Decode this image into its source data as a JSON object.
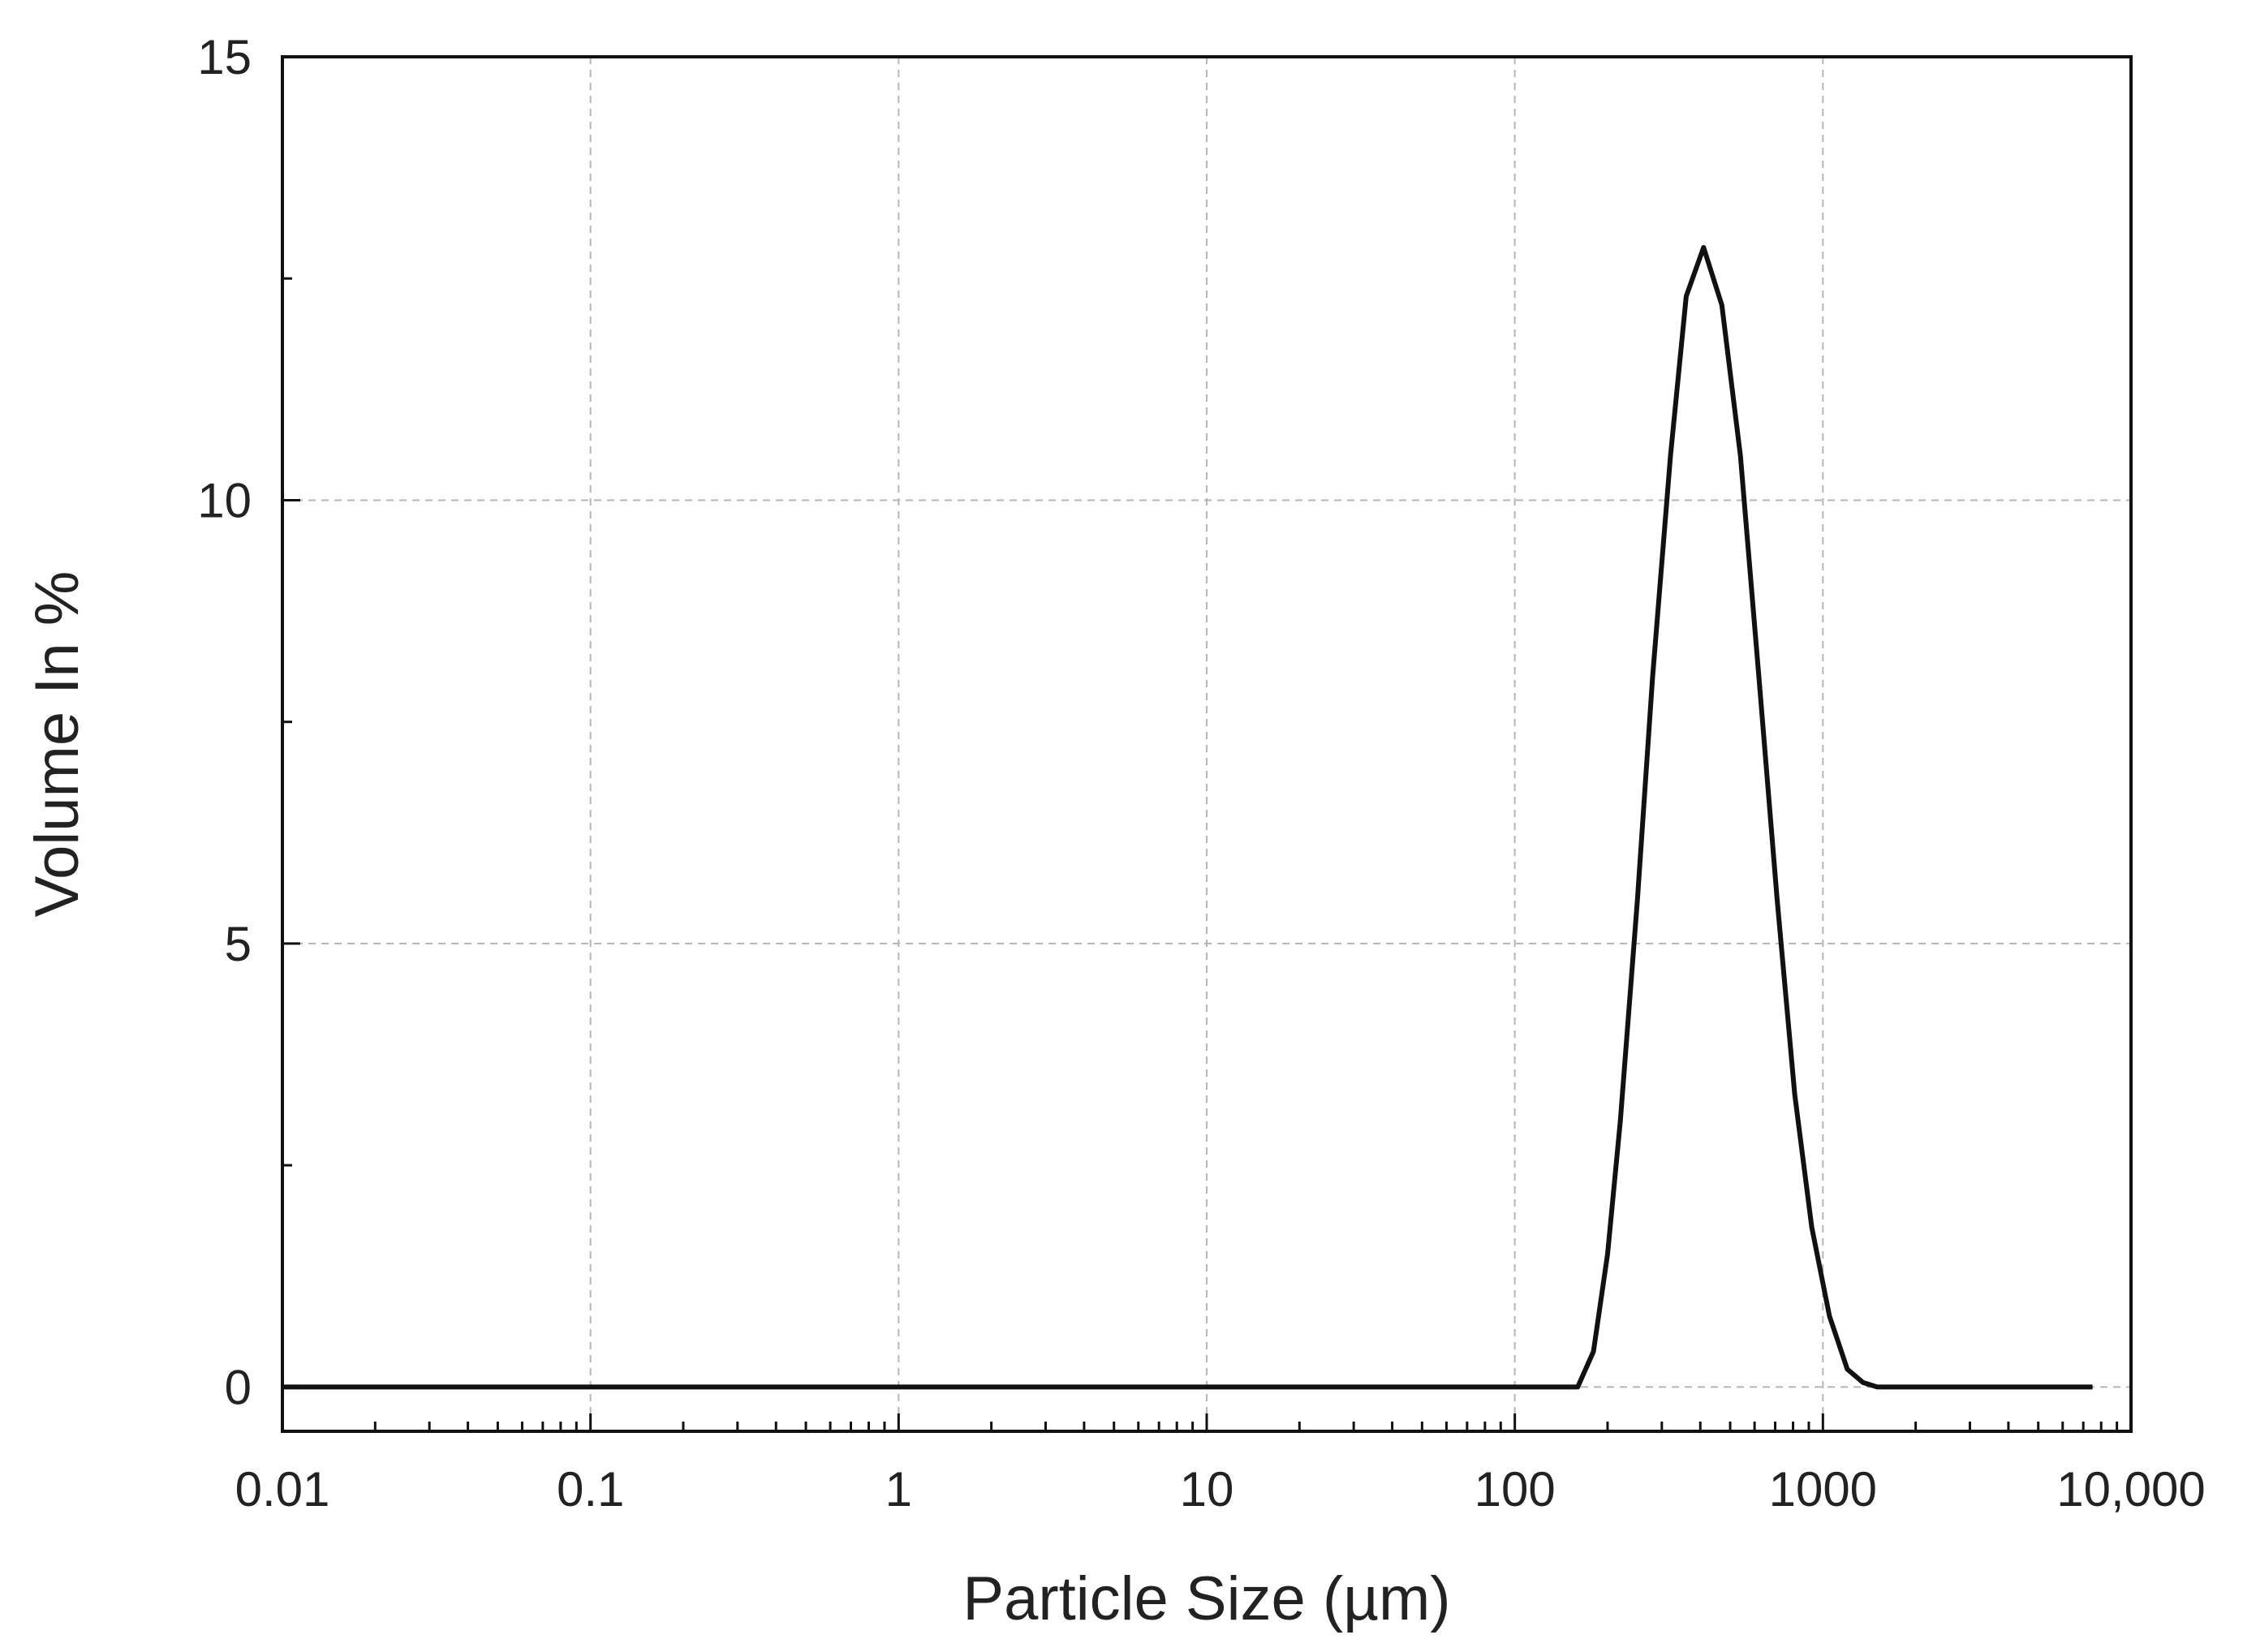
{
  "chart_data": {
    "type": "line",
    "xlabel": "Particle Size (µm)",
    "ylabel": "Volume In %",
    "x_scale": "log",
    "xlim": [
      0.01,
      10000
    ],
    "ylim": [
      -0.5,
      15
    ],
    "x_ticks": [
      0.01,
      0.1,
      1,
      10,
      100,
      1000,
      10000
    ],
    "x_tick_labels": [
      "0.01",
      "0.1",
      "1",
      "10",
      "100",
      "1000",
      "10,000"
    ],
    "y_ticks": [
      0,
      5,
      10,
      15
    ],
    "y_tick_labels": [
      "0",
      "5",
      "10",
      "15"
    ],
    "y_minor_ticks": [
      2.5,
      7.5,
      12.5
    ],
    "grid": true,
    "legend": "none",
    "series": [
      {
        "color": "#111111",
        "x": [
          0.01,
          100,
          160,
          180,
          200,
          220,
          250,
          280,
          320,
          360,
          410,
          470,
          540,
          620,
          710,
          810,
          920,
          1050,
          1200,
          1350,
          1500,
          1700,
          2500,
          5000,
          7500
        ],
        "y": [
          0,
          0,
          0,
          0.4,
          1.5,
          3.0,
          5.5,
          8.0,
          10.5,
          12.3,
          12.85,
          12.2,
          10.5,
          8.0,
          5.5,
          3.3,
          1.8,
          0.8,
          0.2,
          0.05,
          0,
          0,
          0,
          0,
          0
        ]
      }
    ]
  }
}
